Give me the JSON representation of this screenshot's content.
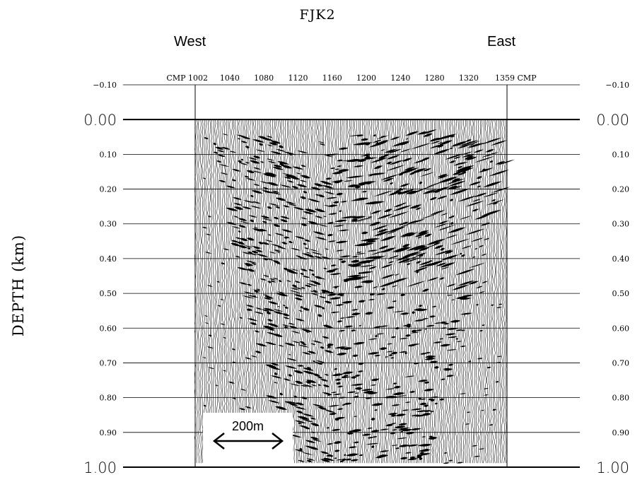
{
  "figure": {
    "title": "FJK2",
    "direction_left": "West",
    "direction_right": "East",
    "y_axis_label": "DEPTH (km)",
    "scale_bar_label": "200m"
  },
  "chart_data": {
    "type": "seismic-section",
    "title": "FJK2",
    "ylabel": "DEPTH (km)",
    "ylim": [
      -0.1,
      1.0
    ],
    "y_ticks_major": [
      {
        "value": 0.0,
        "label": "0.00"
      },
      {
        "value": 1.0,
        "label": "1.00"
      }
    ],
    "y_ticks_minor": [
      {
        "value": -0.1,
        "label": "−0.10"
      },
      {
        "value": 0.1,
        "label": "0.10"
      },
      {
        "value": 0.2,
        "label": "0.20"
      },
      {
        "value": 0.3,
        "label": "0.30"
      },
      {
        "value": 0.4,
        "label": "0.40"
      },
      {
        "value": 0.5,
        "label": "0.50"
      },
      {
        "value": 0.6,
        "label": "0.60"
      },
      {
        "value": 0.7,
        "label": "0.70"
      },
      {
        "value": 0.8,
        "label": "0.80"
      },
      {
        "value": 0.9,
        "label": "0.90"
      }
    ],
    "x_range_cmp": [
      1002,
      1359
    ],
    "x_ticks": [
      {
        "value": 1002,
        "label": "CMP 1002"
      },
      {
        "value": 1040,
        "label": "1040"
      },
      {
        "value": 1080,
        "label": "1080"
      },
      {
        "value": 1120,
        "label": "1120"
      },
      {
        "value": 1160,
        "label": "1160"
      },
      {
        "value": 1200,
        "label": "1200"
      },
      {
        "value": 1240,
        "label": "1240"
      },
      {
        "value": 1280,
        "label": "1280"
      },
      {
        "value": 1320,
        "label": "1320"
      },
      {
        "value": 1359,
        "label": "1359 CMP"
      }
    ],
    "grid": true
  }
}
